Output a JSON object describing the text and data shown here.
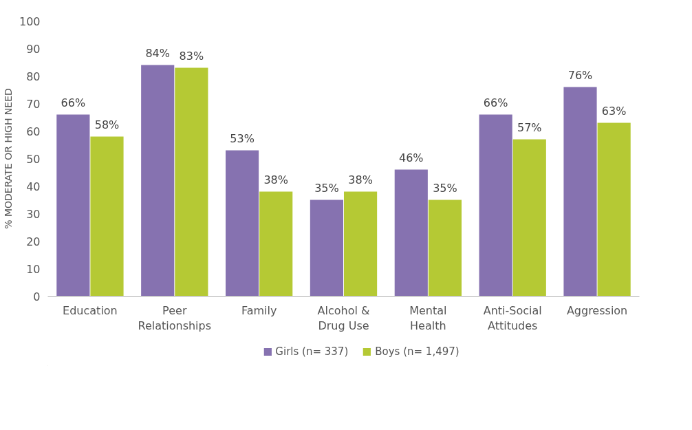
{
  "chart_data": {
    "type": "bar",
    "ylabel": "% MODERATE OR HIGH NEED",
    "categories": [
      "Education",
      "Peer\nRelationships",
      "Family",
      "Alcohol &\nDrug Use",
      "Mental\nHealth",
      "Anti-Social\nAttitudes",
      "Aggression"
    ],
    "series": [
      {
        "name": "Girls (n= 337)",
        "color": "#8672b0",
        "values": [
          66,
          84,
          53,
          35,
          46,
          66,
          76
        ],
        "value_labels": [
          "66%",
          "84%",
          "53%",
          "35%",
          "46%",
          "66%",
          "76%"
        ]
      },
      {
        "name": "Boys (n= 1,497)",
        "color": "#b5c934",
        "values": [
          58,
          83,
          38,
          38,
          35,
          57,
          63
        ],
        "value_labels": [
          "58%",
          "83%",
          "38%",
          "38%",
          "35%",
          "57%",
          "63%"
        ]
      }
    ],
    "ylim": [
      0,
      100
    ],
    "yticks": [
      0,
      10,
      20,
      30,
      40,
      50,
      60,
      70,
      80,
      90,
      100
    ],
    "grid": false,
    "legend": "bottom"
  }
}
